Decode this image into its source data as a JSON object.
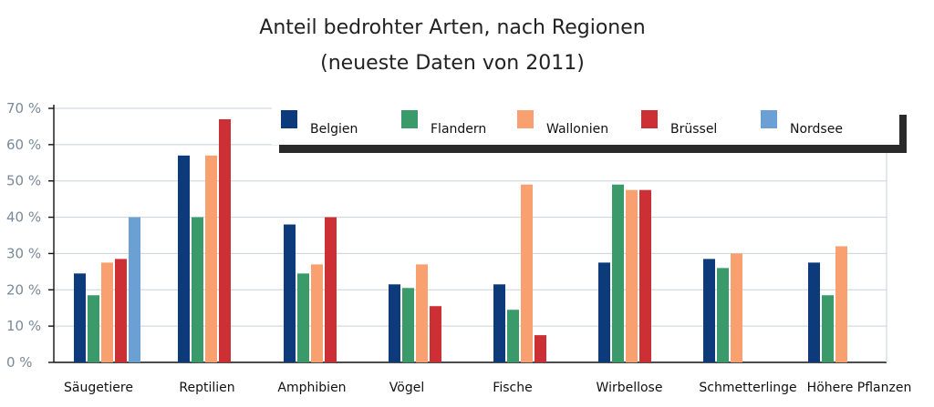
{
  "chart_data": {
    "type": "bar",
    "title": "Anteil bedrohter Arten, nach Regionen",
    "subtitle": "(neueste Daten von 2011)",
    "xlabel": "",
    "ylabel": "",
    "ylim": [
      0,
      70
    ],
    "yticks": [
      0,
      10,
      20,
      30,
      40,
      50,
      60,
      70
    ],
    "ytick_labels": [
      "0 %",
      "10 %",
      "20 %",
      "30 %",
      "40 %",
      "50 %",
      "60 %",
      "70 %"
    ],
    "grid": true,
    "legend_position": "top-right",
    "categories": [
      "Säugetiere",
      "Reptilien",
      "Amphibien",
      "Vögel",
      "Fische",
      "Wirbellose",
      "Schmetterlinge",
      "Höhere Pflanzen"
    ],
    "series": [
      {
        "name": "Belgien",
        "color": "#0d3a7a",
        "values": [
          24.5,
          57,
          38,
          21.5,
          21.5,
          27.5,
          28.5,
          27.5
        ]
      },
      {
        "name": "Flandern",
        "color": "#3a9a6a",
        "values": [
          18.5,
          40,
          24.5,
          20.5,
          14.5,
          49,
          26,
          18.5
        ]
      },
      {
        "name": "Wallonien",
        "color": "#f8a070",
        "values": [
          27.5,
          57,
          27,
          27,
          49,
          47.5,
          30,
          32
        ]
      },
      {
        "name": "Brüssel",
        "color": "#cc3035",
        "values": [
          28.5,
          67,
          40,
          15.5,
          7.5,
          47.5,
          null,
          null
        ]
      },
      {
        "name": "Nordsee",
        "color": "#6aa0d4",
        "values": [
          40,
          null,
          null,
          null,
          null,
          null,
          null,
          null
        ]
      }
    ]
  }
}
